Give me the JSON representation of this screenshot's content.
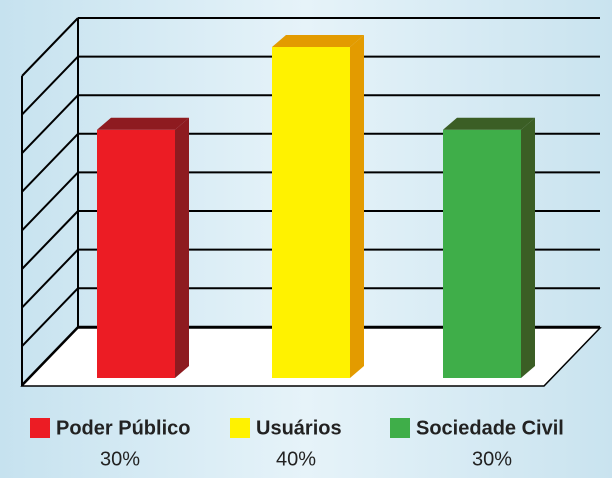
{
  "chart_data": {
    "type": "bar3d",
    "categories": [
      "Poder Público",
      "Usuários",
      "Sociedade Civil"
    ],
    "values": [
      30,
      40,
      30
    ],
    "value_labels": [
      "30%",
      "40%",
      "30%"
    ],
    "colors": [
      "#ec1c24",
      "#fff200",
      "#3fae49"
    ],
    "side_colors": [
      "#8e1b20",
      "#e39b00",
      "#3b5e25"
    ],
    "ylim": [
      0,
      40
    ]
  }
}
